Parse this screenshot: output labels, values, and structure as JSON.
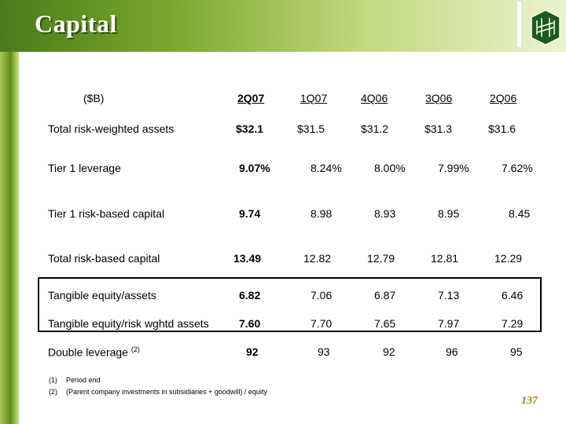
{
  "header": {
    "title": "Capital"
  },
  "table": {
    "unit_label": "($B)",
    "columns": [
      "2Q07",
      "1Q07",
      "4Q06",
      "3Q06",
      "2Q06"
    ],
    "rows": [
      {
        "label": "Total risk-weighted assets",
        "values": [
          "$32.1",
          "$31.5",
          "$31.2",
          "$31.3",
          "$31.6"
        ]
      },
      {
        "label": "Tier 1 leverage",
        "values": [
          "9.07%",
          "8.24%",
          "8.00%",
          "7.99%",
          "7.62%"
        ]
      },
      {
        "label": "Tier 1 risk-based capital",
        "values": [
          "9.74",
          "8.98",
          "8.93",
          "8.95",
          "8.45"
        ]
      },
      {
        "label": "Total risk-based capital",
        "values": [
          "13.49",
          "12.82",
          "12.79",
          "12.81",
          "12.29"
        ]
      },
      {
        "label": "Tangible equity/assets",
        "values": [
          "6.82",
          "7.06",
          "6.87",
          "7.13",
          "6.46"
        ]
      },
      {
        "label": "Tangible equity/risk wghtd assets",
        "values": [
          "7.60",
          "7.70",
          "7.65",
          "7.97",
          "7.29"
        ]
      },
      {
        "label": "Double leverage",
        "note": "(2)",
        "values": [
          "92",
          "93",
          "92",
          "96",
          "95"
        ]
      }
    ]
  },
  "footnotes": [
    {
      "marker": "(1)",
      "text": "Period end"
    },
    {
      "marker": "(2)",
      "text": "(Parent company investments in subsidiaries + goodwill) / equity"
    }
  ],
  "page_number": "137",
  "colors": {
    "brand_green": "#5e8a1e",
    "page_number": "#b07a1a"
  },
  "icons": {
    "logo": "bank-logo-icon"
  }
}
